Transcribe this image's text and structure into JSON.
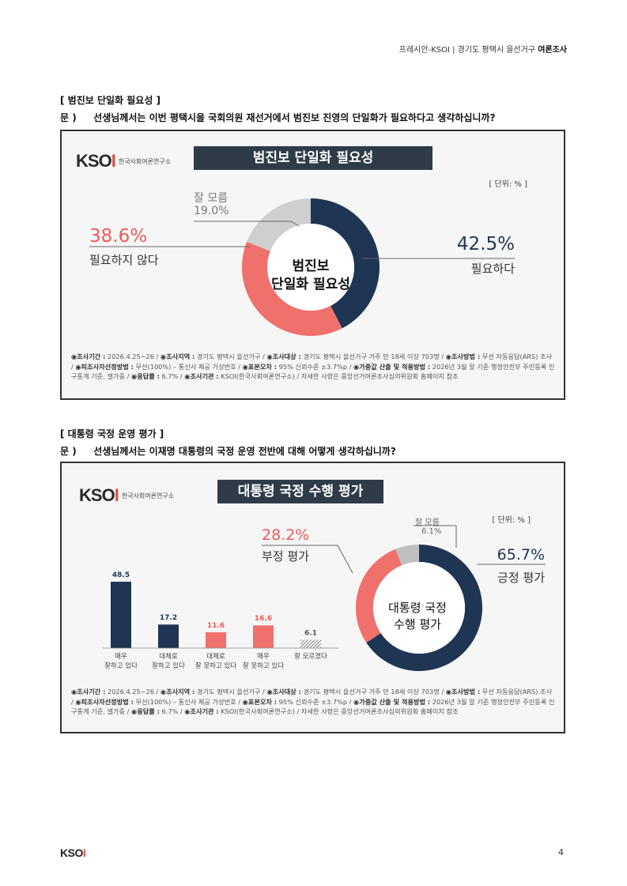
{
  "header": {
    "left": "프레시안-KSOI | 경기도 평택시 을선거구",
    "bold": "여론조사"
  },
  "section1": {
    "title": "[ 범진보 단일화 필요성 ]",
    "q_label": "문 )",
    "question": "선생님께서는 이번 평택시을 국회의원 재선거에서 범진보 진영의 단일화가 필요하다고 생각하십니까?",
    "logo_mark": "KSOI",
    "logo_sub": "한국사회여론연구소",
    "banner": "범진보 단일화 필요성",
    "unit": "[ 단위: % ]",
    "center_line1": "범진보",
    "center_line2": "단일화 필요성",
    "chart_data": {
      "type": "pie",
      "title": "범진보 단일화 필요성",
      "unit": "%",
      "slices": [
        {
          "label": "필요하다",
          "value": 42.5,
          "value_text": "42.5%",
          "color": "#1f3554"
        },
        {
          "label": "필요하지 않다",
          "value": 38.6,
          "value_text": "38.6%",
          "color": "#f0706b"
        },
        {
          "label": "잘 모름",
          "value": 19.0,
          "value_text": "19.0%",
          "color": "#cfcfcf"
        }
      ]
    },
    "note": {
      "k1": "◉조사기간 :",
      "v1": " 2026.4.25~26 / ",
      "k2": "◉조사지역 :",
      "v2": " 경기도 평택시 을선거구 / ",
      "k3": "◉조사대상 :",
      "v3": " 경기도 평택시 을선거구 거주 만 18세 이상 703명 / ",
      "k4": "◉조사방법 :",
      "v4": " 무선 자동응답(ARS) 조사 / ",
      "k5": "◉피조사자선정방법 :",
      "v5": " 무선(100%) – 통신사 제공 가상번호 / ",
      "k6": "◉표본오차 :",
      "v6": " 95% 신뢰수준 ±3.7%p / ",
      "k7": "◉가중값 산출 및 적용방법 :",
      "v7": " 2026년 3월 말 기준 행정안전부 주민등록 인구통계 기준, 셀가중 / ",
      "k8": "◉응답률 :",
      "v8": " 6.7% / ",
      "k9": "◉조사기관 :",
      "v9": " KSOI(한국사회여론연구소) / 자세한 사항은 중앙선거여론조사심의위원회 홈페이지 참조"
    }
  },
  "section2": {
    "title": "[ 대통령 국정 운영 평가 ]",
    "q_label": "문 )",
    "question": "선생님께서는 이재명 대통령의 국정 운영 전반에 대해 어떻게 생각하십니까?",
    "logo_mark": "KSOI",
    "logo_sub": "한국사회여론연구소",
    "banner": "대통령 국정 수행 평가",
    "unit": "[ 단위: % ]",
    "center_line1": "대통령 국정",
    "center_line2": "수행 평가",
    "bar_chart": {
      "type": "bar",
      "categories": [
        "매우 잘하고 있다",
        "대체로 잘하고 있다",
        "대체로 잘 못하고 있다",
        "매우 잘 못하고 있다",
        "잘 모르겠다"
      ],
      "category_lines": [
        [
          "매우",
          "잘하고 있다"
        ],
        [
          "대체로",
          "잘하고 있다"
        ],
        [
          "대체로",
          "잘 못하고 있다"
        ],
        [
          "매우",
          "잘 못하고 있다"
        ],
        [
          "잘 모르겠다"
        ]
      ],
      "values": [
        48.5,
        17.2,
        11.6,
        16.6,
        6.1
      ],
      "value_text": [
        "48.5",
        "17.2",
        "11.6",
        "16.6",
        "6.1"
      ],
      "colors": [
        "#1f3554",
        "#1f3554",
        "#f0706b",
        "#f0706b",
        "hatch"
      ]
    },
    "chart_data": {
      "type": "pie",
      "title": "대통령 국정 수행 평가",
      "unit": "%",
      "slices": [
        {
          "label": "긍정 평가",
          "value": 65.7,
          "value_text": "65.7%",
          "color": "#1f3554"
        },
        {
          "label": "부정 평가",
          "value": 28.2,
          "value_text": "28.2%",
          "color": "#f0706b"
        },
        {
          "label": "잘 모름",
          "value": 6.1,
          "value_text": "6.1%",
          "color": "#bfbfbf"
        }
      ]
    },
    "note": {
      "k1": "◉조사기간 :",
      "v1": " 2026.4.25~26 / ",
      "k2": "◉조사지역 :",
      "v2": " 경기도 평택시 을선거구 / ",
      "k3": "◉조사대상 :",
      "v3": " 경기도 평택시 을선거구 거주 만 18세 이상 703명 / ",
      "k4": "◉조사방법 :",
      "v4": " 무선 자동응답(ARS) 조사 / ",
      "k5": "◉피조사자선정방법 :",
      "v5": " 무선(100%) – 통신사 제공 가상번호 / ",
      "k6": "◉표본오차 :",
      "v6": " 95% 신뢰수준 ±3.7%p / ",
      "k7": "◉가중값 산출 및 적용방법 :",
      "v7": " 2026년 3월 말 기준 행정안전부 주민등록 인구통계 기준, 셀가중 / ",
      "k8": "◉응답률 :",
      "v8": " 6.7% / ",
      "k9": "◉조사기관 :",
      "v9": " KSOI(한국사회여론연구소) / 자세한 사항은 중앙선거여론조사심의위원회 홈페이지 참조"
    }
  },
  "footer": {
    "logo": "KSOI",
    "page": "4"
  }
}
